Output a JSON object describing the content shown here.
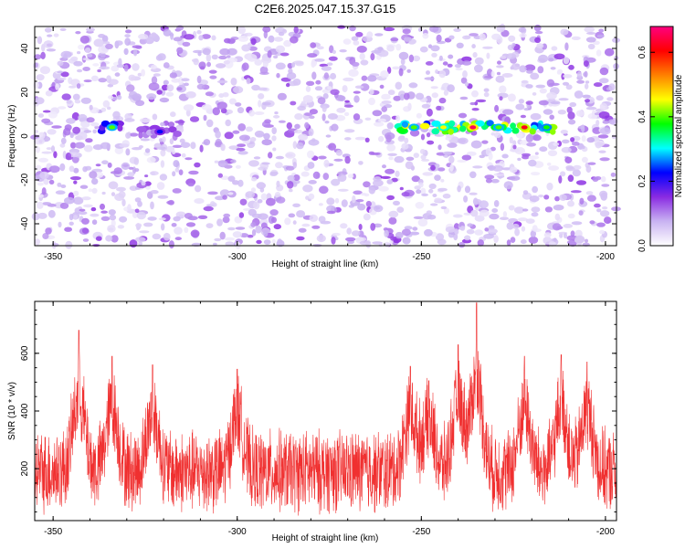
{
  "figure_title": "C2E6.2025.047.15.37.G15",
  "chart_data": [
    {
      "type": "heatmap",
      "xlabel": "Height of straight line (km)",
      "ylabel": "Frequency (Hz)",
      "xlim": [
        -355,
        -197
      ],
      "ylim": [
        -50,
        50
      ],
      "x_ticks": [
        -350,
        -300,
        -250,
        -200
      ],
      "x_tick_labels": [
        "-350",
        "-300",
        "-250",
        "-200"
      ],
      "y_ticks": [
        -40,
        -20,
        0,
        20,
        40
      ],
      "y_tick_labels": [
        "-40",
        "-20",
        "0",
        "20",
        "40"
      ],
      "colorbar": {
        "label": "Normalized spectral amplitude",
        "range": [
          0,
          0.68
        ],
        "ticks": [
          0,
          0.2,
          0.4,
          0.6
        ],
        "tick_labels": [
          "0.0",
          "0.2",
          "0.4",
          "0.6"
        ],
        "colors": [
          "#ffffff",
          "#c9b3f2",
          "#8a2be2",
          "#0000ff",
          "#00ffff",
          "#00ff00",
          "#ffff00",
          "#ff8000",
          "#ff0000",
          "#ff0080"
        ]
      },
      "features": [
        {
          "x_range": [
            -337,
            -331
          ],
          "frequency": 4,
          "peak": 0.4
        },
        {
          "x_range": [
            -326,
            -316
          ],
          "frequency": 2,
          "peak": 0.22
        },
        {
          "x_range": [
            -256,
            -214
          ],
          "frequency": 4,
          "peak": 0.66
        }
      ]
    },
    {
      "type": "line",
      "xlabel": "Height of straight line (km)",
      "ylabel": "SNR (10 * v/v)",
      "xlim": [
        -355,
        -197
      ],
      "ylim": [
        20,
        780
      ],
      "x_ticks": [
        -350,
        -300,
        -250,
        -200
      ],
      "x_tick_labels": [
        "-350",
        "-300",
        "-250",
        "-200"
      ],
      "y_ticks": [
        200,
        400,
        600
      ],
      "y_tick_labels": [
        "200",
        "400",
        "600"
      ],
      "line_color": "#f03030",
      "baseline_snr": 190,
      "noise_range": [
        60,
        380
      ],
      "peaks": [
        {
          "x": -343,
          "snr": 680
        },
        {
          "x": -334,
          "snr": 590
        },
        {
          "x": -323,
          "snr": 560
        },
        {
          "x": -300,
          "snr": 545
        },
        {
          "x": -253,
          "snr": 555
        },
        {
          "x": -248,
          "snr": 505
        },
        {
          "x": -240,
          "snr": 630
        },
        {
          "x": -235,
          "snr": 775
        },
        {
          "x": -222,
          "snr": 590
        },
        {
          "x": -212,
          "snr": 595
        },
        {
          "x": -205,
          "snr": 570
        }
      ]
    }
  ]
}
